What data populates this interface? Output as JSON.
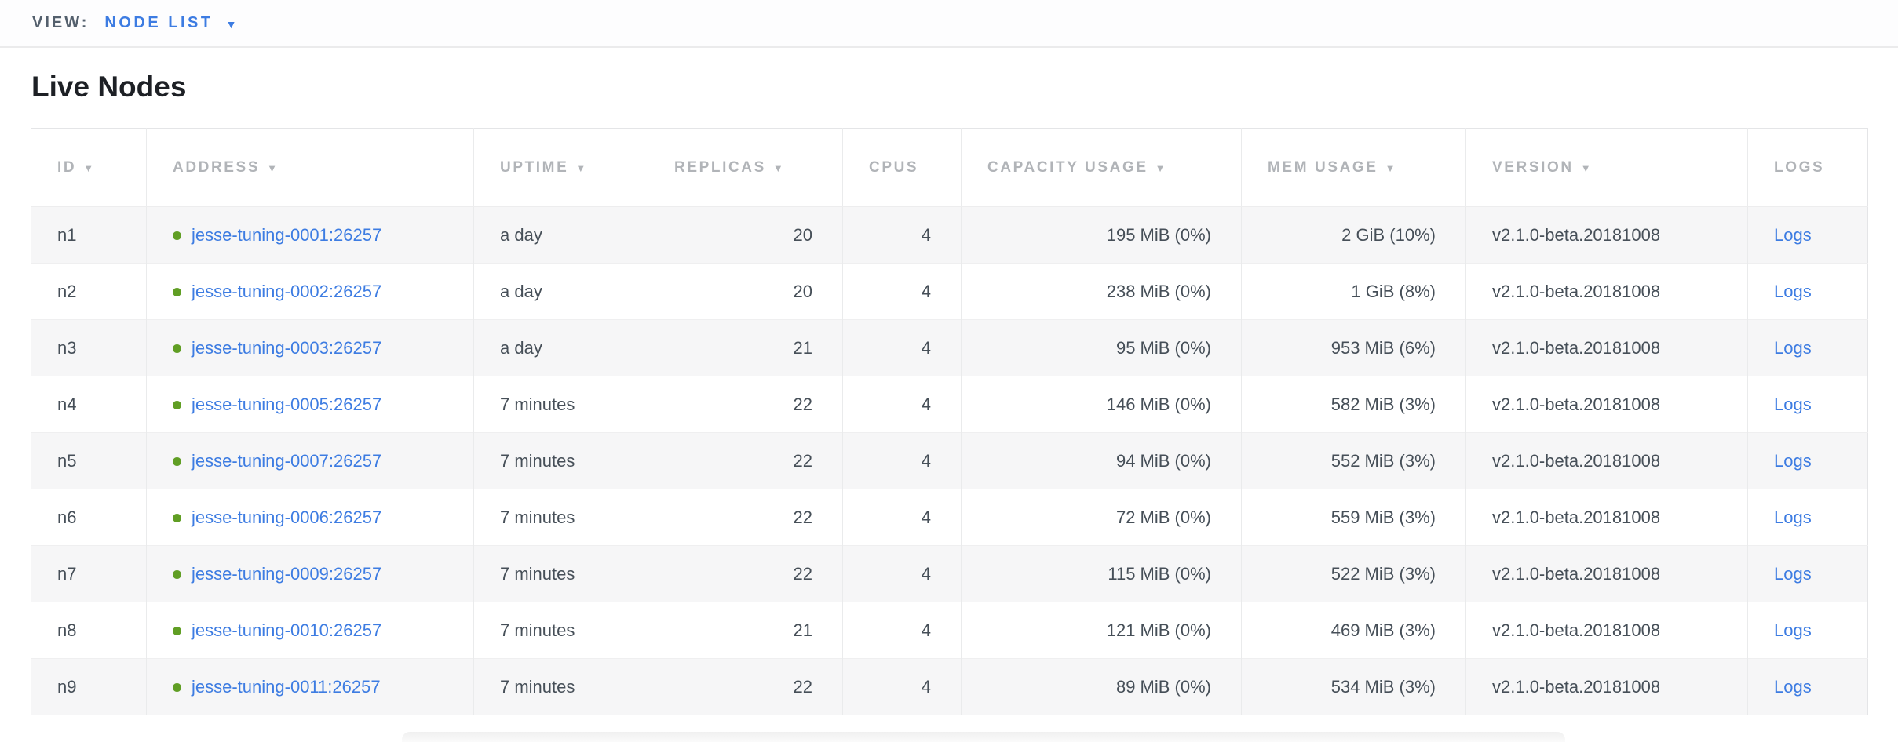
{
  "view_bar": {
    "label": "VIEW:",
    "selected_view": "NODE LIST"
  },
  "page": {
    "title": "Live Nodes"
  },
  "icons": {
    "sort_arrow": "▼",
    "dropdown_arrow": "▼"
  },
  "colors": {
    "accent_blue": "#3d7ce2",
    "status_green": "#609e24",
    "header_text_gray": "#b1b4b8",
    "body_text": "#464f58",
    "alt_row_bg": "#f6f6f7"
  },
  "table": {
    "columns": [
      {
        "key": "id",
        "label": "ID",
        "sortable": true,
        "align": "left"
      },
      {
        "key": "address",
        "label": "ADDRESS",
        "sortable": true,
        "align": "left"
      },
      {
        "key": "uptime",
        "label": "UPTIME",
        "sortable": true,
        "align": "left"
      },
      {
        "key": "replicas",
        "label": "REPLICAS",
        "sortable": true,
        "align": "right"
      },
      {
        "key": "cpus",
        "label": "CPUS",
        "sortable": false,
        "align": "right"
      },
      {
        "key": "capacity_usage",
        "label": "CAPACITY USAGE",
        "sortable": true,
        "align": "right"
      },
      {
        "key": "mem_usage",
        "label": "MEM USAGE",
        "sortable": true,
        "align": "right"
      },
      {
        "key": "version",
        "label": "VERSION",
        "sortable": true,
        "align": "left"
      },
      {
        "key": "logs",
        "label": "LOGS",
        "sortable": false,
        "align": "left"
      }
    ],
    "rows": [
      {
        "id": "n1",
        "address": "jesse-tuning-0001:26257",
        "uptime": "a day",
        "replicas": "20",
        "cpus": "4",
        "capacity_usage": "195 MiB (0%)",
        "mem_usage": "2 GiB (10%)",
        "version": "v2.1.0-beta.20181008",
        "logs": "Logs"
      },
      {
        "id": "n2",
        "address": "jesse-tuning-0002:26257",
        "uptime": "a day",
        "replicas": "20",
        "cpus": "4",
        "capacity_usage": "238 MiB (0%)",
        "mem_usage": "1 GiB (8%)",
        "version": "v2.1.0-beta.20181008",
        "logs": "Logs"
      },
      {
        "id": "n3",
        "address": "jesse-tuning-0003:26257",
        "uptime": "a day",
        "replicas": "21",
        "cpus": "4",
        "capacity_usage": "95 MiB (0%)",
        "mem_usage": "953 MiB (6%)",
        "version": "v2.1.0-beta.20181008",
        "logs": "Logs"
      },
      {
        "id": "n4",
        "address": "jesse-tuning-0005:26257",
        "uptime": "7 minutes",
        "replicas": "22",
        "cpus": "4",
        "capacity_usage": "146 MiB (0%)",
        "mem_usage": "582 MiB (3%)",
        "version": "v2.1.0-beta.20181008",
        "logs": "Logs"
      },
      {
        "id": "n5",
        "address": "jesse-tuning-0007:26257",
        "uptime": "7 minutes",
        "replicas": "22",
        "cpus": "4",
        "capacity_usage": "94 MiB (0%)",
        "mem_usage": "552 MiB (3%)",
        "version": "v2.1.0-beta.20181008",
        "logs": "Logs"
      },
      {
        "id": "n6",
        "address": "jesse-tuning-0006:26257",
        "uptime": "7 minutes",
        "replicas": "22",
        "cpus": "4",
        "capacity_usage": "72 MiB (0%)",
        "mem_usage": "559 MiB (3%)",
        "version": "v2.1.0-beta.20181008",
        "logs": "Logs"
      },
      {
        "id": "n7",
        "address": "jesse-tuning-0009:26257",
        "uptime": "7 minutes",
        "replicas": "22",
        "cpus": "4",
        "capacity_usage": "115 MiB (0%)",
        "mem_usage": "522 MiB (3%)",
        "version": "v2.1.0-beta.20181008",
        "logs": "Logs"
      },
      {
        "id": "n8",
        "address": "jesse-tuning-0010:26257",
        "uptime": "7 minutes",
        "replicas": "21",
        "cpus": "4",
        "capacity_usage": "121 MiB (0%)",
        "mem_usage": "469 MiB (3%)",
        "version": "v2.1.0-beta.20181008",
        "logs": "Logs"
      },
      {
        "id": "n9",
        "address": "jesse-tuning-0011:26257",
        "uptime": "7 minutes",
        "replicas": "22",
        "cpus": "4",
        "capacity_usage": "89 MiB (0%)",
        "mem_usage": "534 MiB (3%)",
        "version": "v2.1.0-beta.20181008",
        "logs": "Logs"
      }
    ]
  }
}
